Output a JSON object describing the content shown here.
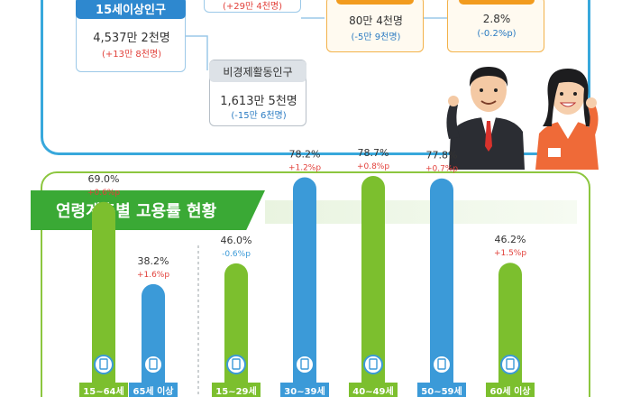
{
  "top": {
    "pop15": {
      "label": "15세이상인구",
      "value": "4,537만 2천명",
      "change": "(+13만 8천명)"
    },
    "active_change": "(+29만 4천명)",
    "nonactive": {
      "label": "비경제활동인구",
      "value": "1,613만 5천명",
      "change": "(-15만 6천명)"
    },
    "unemployed": {
      "value": "80만 4천명",
      "change": "(-5만 9천명)"
    },
    "unemp_rate": {
      "value": "2.8%",
      "change": "(-0.2%p)"
    }
  },
  "section_title": "연령계층별 고용률 현황",
  "colors": {
    "green": "#7cbf2e",
    "blue": "#3b9ad8",
    "red": "#e2403a",
    "icon_ring": "#3b9ad8"
  },
  "chart_data": {
    "type": "bar",
    "title": "연령계층별 고용률 현황",
    "ylabel": "",
    "ylim": [
      0,
      100
    ],
    "categories": [
      "15~64세",
      "65세 이상",
      "15~29세",
      "30~39세",
      "40~49세",
      "50~59세",
      "60세 이상"
    ],
    "values": [
      69.0,
      38.2,
      46.0,
      78.2,
      78.7,
      77.8,
      46.2
    ],
    "value_labels": [
      "69.0%",
      "38.2%",
      "46.0%",
      "78.2%",
      "78.7%",
      "77.8%",
      "46.2%"
    ],
    "changes": [
      "+0.6%p",
      "+1.6%p",
      "-0.6%p",
      "+1.2%p",
      "+0.8%p",
      "+0.7%p",
      "+1.5%p"
    ],
    "bar_colors": [
      "green",
      "blue",
      "green",
      "blue",
      "green",
      "blue",
      "green"
    ]
  }
}
